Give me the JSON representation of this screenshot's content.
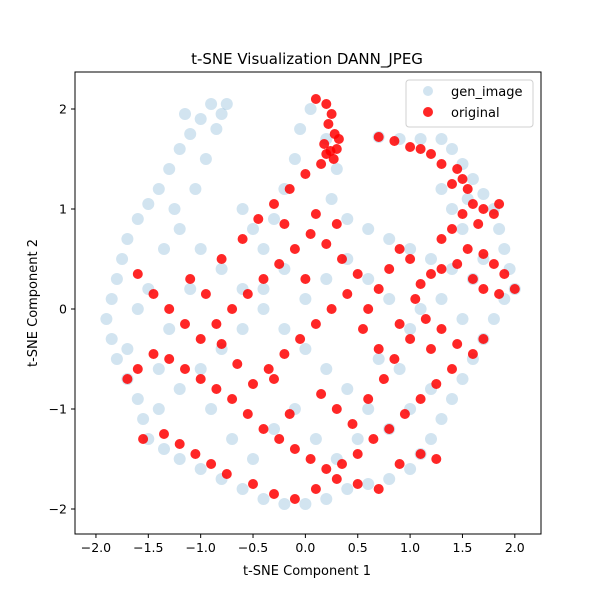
{
  "chart_data": {
    "type": "scatter",
    "title": "t-SNE Visualization DANN_JPEG",
    "xlabel": "t-SNE Component 1",
    "ylabel": "t-SNE Component 2",
    "xlim": [
      -2.2,
      2.25
    ],
    "ylim": [
      -2.25,
      2.37
    ],
    "x_ticks": [
      -2.0,
      -1.5,
      -1.0,
      -0.5,
      0.0,
      0.5,
      1.0,
      1.5,
      2.0
    ],
    "x_tick_labels": [
      "−2.0",
      "−1.5",
      "−1.0",
      "−0.5",
      "0.0",
      "0.5",
      "1.0",
      "1.5",
      "2.0"
    ],
    "y_ticks": [
      -2,
      -1,
      0,
      1,
      2
    ],
    "y_tick_labels": [
      "−2",
      "−1",
      "0",
      "1",
      "2"
    ],
    "grid": false,
    "legend_position": "top-right",
    "series": [
      {
        "name": "gen_image",
        "color": "#1f77b4",
        "alpha": 0.2,
        "points": [
          [
            -1.0,
            1.9
          ],
          [
            -0.9,
            2.05
          ],
          [
            -0.8,
            1.95
          ],
          [
            -1.1,
            1.75
          ],
          [
            -1.2,
            1.6
          ],
          [
            -1.3,
            1.4
          ],
          [
            -1.4,
            1.2
          ],
          [
            -1.5,
            1.05
          ],
          [
            -1.6,
            0.9
          ],
          [
            -1.7,
            0.7
          ],
          [
            -1.75,
            0.5
          ],
          [
            -1.8,
            0.3
          ],
          [
            -1.85,
            0.1
          ],
          [
            -1.9,
            -0.1
          ],
          [
            -1.85,
            -0.3
          ],
          [
            -1.8,
            -0.5
          ],
          [
            -1.7,
            -0.7
          ],
          [
            -1.6,
            -0.9
          ],
          [
            -1.55,
            -1.1
          ],
          [
            -1.5,
            -1.3
          ],
          [
            -1.35,
            -1.4
          ],
          [
            -1.2,
            -1.5
          ],
          [
            -1.0,
            -1.6
          ],
          [
            -0.8,
            -1.7
          ],
          [
            -0.6,
            -1.8
          ],
          [
            -0.4,
            -1.9
          ],
          [
            -0.2,
            -1.95
          ],
          [
            0.0,
            -1.95
          ],
          [
            0.2,
            -1.9
          ],
          [
            0.4,
            -1.8
          ],
          [
            0.6,
            -1.75
          ],
          [
            0.8,
            -1.7
          ],
          [
            1.0,
            -1.6
          ],
          [
            1.1,
            -1.45
          ],
          [
            1.2,
            -1.3
          ],
          [
            1.3,
            -1.1
          ],
          [
            1.4,
            -0.9
          ],
          [
            1.5,
            -0.7
          ],
          [
            1.6,
            -0.5
          ],
          [
            1.7,
            -0.3
          ],
          [
            1.8,
            -0.1
          ],
          [
            1.9,
            0.1
          ],
          [
            2.0,
            0.2
          ],
          [
            1.95,
            0.4
          ],
          [
            1.9,
            0.6
          ],
          [
            1.85,
            0.8
          ],
          [
            1.8,
            1.0
          ],
          [
            1.7,
            1.15
          ],
          [
            1.6,
            1.3
          ],
          [
            1.5,
            1.45
          ],
          [
            1.4,
            1.6
          ],
          [
            1.3,
            1.7
          ],
          [
            1.1,
            1.7
          ],
          [
            0.9,
            1.7
          ],
          [
            0.7,
            1.72
          ],
          [
            -0.6,
            1.0
          ],
          [
            -0.5,
            0.8
          ],
          [
            -0.4,
            0.6
          ],
          [
            -0.3,
            0.9
          ],
          [
            -0.2,
            1.2
          ],
          [
            -0.1,
            1.5
          ],
          [
            -0.05,
            1.8
          ],
          [
            0.05,
            2.0
          ],
          [
            0.2,
            1.7
          ],
          [
            0.3,
            1.4
          ],
          [
            0.25,
            1.1
          ],
          [
            0.4,
            0.9
          ],
          [
            0.6,
            0.8
          ],
          [
            0.8,
            0.7
          ],
          [
            1.0,
            0.6
          ],
          [
            1.2,
            0.5
          ],
          [
            1.4,
            0.4
          ],
          [
            1.6,
            0.3
          ],
          [
            -1.2,
            0.8
          ],
          [
            -1.0,
            0.6
          ],
          [
            -0.8,
            0.4
          ],
          [
            -0.6,
            0.2
          ],
          [
            -0.4,
            0.0
          ],
          [
            -0.2,
            -0.2
          ],
          [
            0.0,
            -0.4
          ],
          [
            0.2,
            -0.6
          ],
          [
            0.4,
            -0.8
          ],
          [
            0.6,
            -1.0
          ],
          [
            0.8,
            -1.2
          ],
          [
            1.0,
            -1.0
          ],
          [
            1.2,
            -0.8
          ],
          [
            1.0,
            -0.2
          ],
          [
            0.8,
            0.1
          ],
          [
            0.6,
            0.3
          ],
          [
            0.4,
            0.5
          ],
          [
            0.2,
            0.3
          ],
          [
            0.0,
            0.1
          ],
          [
            -0.2,
            0.4
          ],
          [
            -0.4,
            0.2
          ],
          [
            -0.6,
            -0.2
          ],
          [
            -0.8,
            -0.4
          ],
          [
            -1.0,
            -0.6
          ],
          [
            -1.2,
            -0.8
          ],
          [
            -1.4,
            -1.0
          ],
          [
            -1.3,
            -0.2
          ],
          [
            -1.5,
            0.2
          ],
          [
            -1.1,
            0.2
          ],
          [
            -0.9,
            -1.0
          ],
          [
            -0.7,
            -1.3
          ],
          [
            -0.5,
            -1.5
          ],
          [
            -0.3,
            -1.2
          ],
          [
            -0.1,
            -1.0
          ],
          [
            0.1,
            -1.3
          ],
          [
            0.3,
            -1.5
          ],
          [
            0.5,
            -1.3
          ],
          [
            0.7,
            -0.5
          ],
          [
            0.9,
            -0.6
          ],
          [
            1.1,
            0.0
          ],
          [
            1.3,
            0.1
          ],
          [
            1.5,
            -0.1
          ],
          [
            1.5,
            0.8
          ],
          [
            1.4,
            1.0
          ],
          [
            1.3,
            1.2
          ],
          [
            1.55,
            1.1
          ],
          [
            1.7,
            0.5
          ],
          [
            -1.25,
            1.0
          ],
          [
            -1.05,
            1.2
          ],
          [
            -0.95,
            1.5
          ],
          [
            -0.85,
            1.8
          ],
          [
            -1.15,
            1.95
          ],
          [
            -0.75,
            2.05
          ],
          [
            -1.35,
            0.6
          ],
          [
            -1.6,
            0.0
          ],
          [
            -1.7,
            -0.4
          ],
          [
            -1.4,
            -0.6
          ]
        ]
      },
      {
        "name": "original",
        "color": "#ff0000",
        "alpha": 0.85,
        "points": [
          [
            0.1,
            2.1
          ],
          [
            0.2,
            2.05
          ],
          [
            0.25,
            1.95
          ],
          [
            0.22,
            1.85
          ],
          [
            0.28,
            1.75
          ],
          [
            0.18,
            1.65
          ],
          [
            0.3,
            1.6
          ],
          [
            0.2,
            1.55
          ],
          [
            0.27,
            1.5
          ],
          [
            0.15,
            1.45
          ],
          [
            0.32,
            1.7
          ],
          [
            0.24,
            1.58
          ],
          [
            0.7,
            1.72
          ],
          [
            0.85,
            1.68
          ],
          [
            1.0,
            1.62
          ],
          [
            1.1,
            1.6
          ],
          [
            1.2,
            1.55
          ],
          [
            1.3,
            1.45
          ],
          [
            1.45,
            1.4
          ],
          [
            1.5,
            1.3
          ],
          [
            1.4,
            1.25
          ],
          [
            1.55,
            1.2
          ],
          [
            1.6,
            1.05
          ],
          [
            1.7,
            1.0
          ],
          [
            1.8,
            0.95
          ],
          [
            1.85,
            1.05
          ],
          [
            1.5,
            0.95
          ],
          [
            1.65,
            0.85
          ],
          [
            1.4,
            0.8
          ],
          [
            1.3,
            0.7
          ],
          [
            1.55,
            0.6
          ],
          [
            1.7,
            0.55
          ],
          [
            1.8,
            0.45
          ],
          [
            1.9,
            0.35
          ],
          [
            2.0,
            0.2
          ],
          [
            1.85,
            0.15
          ],
          [
            1.7,
            0.2
          ],
          [
            1.6,
            0.3
          ],
          [
            1.45,
            0.45
          ],
          [
            1.3,
            0.4
          ],
          [
            1.2,
            0.35
          ],
          [
            1.1,
            0.25
          ],
          [
            1.0,
            0.5
          ],
          [
            0.9,
            0.6
          ],
          [
            0.8,
            0.4
          ],
          [
            0.7,
            0.2
          ],
          [
            0.6,
            0.0
          ],
          [
            0.55,
            -0.2
          ],
          [
            0.7,
            -0.4
          ],
          [
            0.85,
            -0.5
          ],
          [
            1.0,
            -0.3
          ],
          [
            1.15,
            -0.1
          ],
          [
            1.3,
            -0.2
          ],
          [
            1.45,
            -0.35
          ],
          [
            1.6,
            -0.45
          ],
          [
            1.7,
            -0.3
          ],
          [
            1.4,
            -0.6
          ],
          [
            1.25,
            -0.75
          ],
          [
            1.1,
            -0.9
          ],
          [
            0.95,
            -1.05
          ],
          [
            0.8,
            -1.2
          ],
          [
            0.65,
            -1.3
          ],
          [
            0.5,
            -1.45
          ],
          [
            0.35,
            -1.55
          ],
          [
            0.2,
            -1.6
          ],
          [
            0.05,
            -1.5
          ],
          [
            -0.1,
            -1.4
          ],
          [
            -0.25,
            -1.3
          ],
          [
            -0.4,
            -1.2
          ],
          [
            -0.55,
            -1.05
          ],
          [
            -0.7,
            -0.9
          ],
          [
            -0.85,
            -0.8
          ],
          [
            -1.0,
            -0.7
          ],
          [
            -1.15,
            -0.6
          ],
          [
            -1.3,
            -0.5
          ],
          [
            -1.45,
            -0.45
          ],
          [
            -1.6,
            -0.6
          ],
          [
            -1.7,
            -0.7
          ],
          [
            -1.55,
            -1.3
          ],
          [
            -1.35,
            -1.25
          ],
          [
            -1.2,
            -1.35
          ],
          [
            -1.05,
            -1.45
          ],
          [
            -0.9,
            -1.55
          ],
          [
            -0.75,
            -1.65
          ],
          [
            -0.5,
            -1.75
          ],
          [
            -0.3,
            -1.85
          ],
          [
            -0.1,
            -1.9
          ],
          [
            0.1,
            -1.8
          ],
          [
            0.3,
            -1.7
          ],
          [
            0.5,
            -1.75
          ],
          [
            0.7,
            -1.8
          ],
          [
            0.9,
            -1.55
          ],
          [
            1.1,
            -1.45
          ],
          [
            1.25,
            -1.5
          ],
          [
            -1.6,
            0.35
          ],
          [
            -1.45,
            0.15
          ],
          [
            -1.3,
            0.0
          ],
          [
            -1.15,
            -0.15
          ],
          [
            -1.0,
            -0.3
          ],
          [
            -0.85,
            -0.15
          ],
          [
            -0.7,
            0.0
          ],
          [
            -0.55,
            0.15
          ],
          [
            -0.4,
            0.3
          ],
          [
            -0.25,
            0.45
          ],
          [
            -0.1,
            0.6
          ],
          [
            0.05,
            0.75
          ],
          [
            0.2,
            0.65
          ],
          [
            0.35,
            0.5
          ],
          [
            0.5,
            0.35
          ],
          [
            0.4,
            0.15
          ],
          [
            0.25,
            0.0
          ],
          [
            0.1,
            -0.15
          ],
          [
            -0.05,
            -0.3
          ],
          [
            -0.2,
            -0.45
          ],
          [
            -0.35,
            -0.6
          ],
          [
            -0.5,
            -0.75
          ],
          [
            -0.65,
            -0.55
          ],
          [
            -0.8,
            -0.35
          ],
          [
            -0.95,
            0.15
          ],
          [
            -1.1,
            0.3
          ],
          [
            -0.8,
            0.5
          ],
          [
            -0.6,
            0.7
          ],
          [
            -0.45,
            0.9
          ],
          [
            -0.3,
            1.05
          ],
          [
            -0.15,
            1.2
          ],
          [
            0.0,
            1.35
          ],
          [
            -0.2,
            0.85
          ],
          [
            0.1,
            0.95
          ],
          [
            0.3,
            0.85
          ],
          [
            0.0,
            0.3
          ],
          [
            0.15,
            -0.85
          ],
          [
            0.3,
            -1.0
          ],
          [
            0.45,
            -1.15
          ],
          [
            0.6,
            -0.9
          ],
          [
            0.75,
            -0.7
          ],
          [
            0.9,
            -0.15
          ],
          [
            1.05,
            0.1
          ],
          [
            1.2,
            -0.4
          ],
          [
            -0.3,
            -0.7
          ],
          [
            -0.15,
            -1.05
          ]
        ]
      }
    ]
  }
}
